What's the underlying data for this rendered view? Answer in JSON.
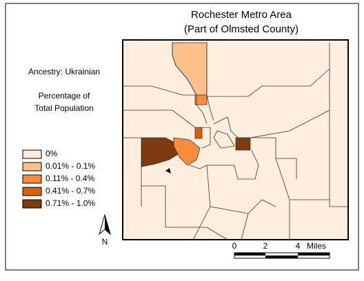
{
  "title": {
    "line1": "Rochester Metro Area",
    "line2": "(Part of Olmsted County)"
  },
  "ancestry": "Ancestry: Ukrainian",
  "measure": {
    "line1": "Percentage of",
    "line2": "Total Population"
  },
  "legend": [
    {
      "label": "0%",
      "color": "#fdeedd"
    },
    {
      "label": "0.01% - 0.1%",
      "color": "#fcc08a"
    },
    {
      "label": "0.11% - 0.4%",
      "color": "#f98d3c"
    },
    {
      "label": "0.41% - 0.7%",
      "color": "#d9600f"
    },
    {
      "label": "0.71% - 1.0%",
      "color": "#7f3b10"
    }
  ],
  "north_label": "N",
  "scale_bar": {
    "ticks": [
      0,
      2,
      4
    ],
    "unit": "Miles"
  }
}
